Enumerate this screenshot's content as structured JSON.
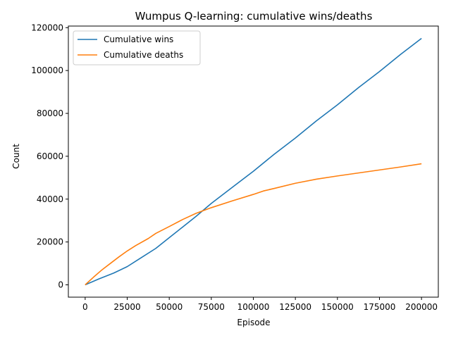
{
  "chart_data": {
    "type": "line",
    "title": "Wumpus Q-learning: cumulative wins/deaths",
    "xlabel": "Episode",
    "ylabel": "Count",
    "xlim": [
      -10000,
      210000
    ],
    "ylim": [
      -5750,
      120750
    ],
    "xticks": [
      0,
      25000,
      50000,
      75000,
      100000,
      125000,
      150000,
      175000,
      200000
    ],
    "xtick_labels": [
      "0",
      "25000",
      "50000",
      "75000",
      "100000",
      "125000",
      "150000",
      "175000",
      "200000"
    ],
    "yticks": [
      0,
      20000,
      40000,
      60000,
      80000,
      100000,
      120000
    ],
    "ytick_labels": [
      "0",
      "20000",
      "40000",
      "60000",
      "80000",
      "100000",
      "120000"
    ],
    "grid": false,
    "legend_position": "top-left",
    "series": [
      {
        "name": "Cumulative wins",
        "color": "#1f77b4",
        "x": [
          0,
          8000,
          17000,
          25000,
          33000,
          42000,
          50000,
          58000,
          66000,
          75000,
          87500,
          100000,
          112500,
          125000,
          137500,
          150000,
          162500,
          175000,
          187500,
          200000
        ],
        "y": [
          0,
          2700,
          5500,
          8500,
          12500,
          17000,
          22000,
          27000,
          32000,
          38000,
          45500,
          53000,
          61000,
          68500,
          76500,
          84000,
          92000,
          99500,
          107500,
          115000
        ]
      },
      {
        "name": "Cumulative deaths",
        "color": "#ff7f0e",
        "x": [
          0,
          5000,
          10000,
          15000,
          20000,
          25000,
          30000,
          37500,
          42000,
          50000,
          58000,
          66000,
          75000,
          87500,
          100000,
          106000,
          112500,
          125000,
          137500,
          150000,
          162500,
          175000,
          187500,
          200000
        ],
        "y": [
          0,
          3600,
          7000,
          10000,
          13000,
          15800,
          18300,
          21600,
          24000,
          27200,
          30500,
          33400,
          36000,
          39200,
          42200,
          43800,
          45000,
          47400,
          49300,
          50800,
          52200,
          53600,
          55000,
          56500
        ]
      }
    ]
  }
}
